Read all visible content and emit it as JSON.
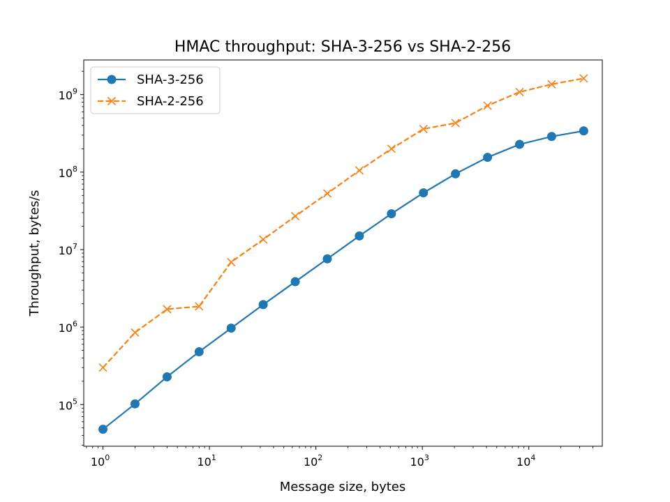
{
  "chart_data": {
    "type": "line",
    "title": "HMAC throughput: SHA-3-256 vs SHA-2-256",
    "xlabel": "Message size, bytes",
    "ylabel": "Throughput, bytes/s",
    "xscale": "log",
    "yscale": "log",
    "xlim": [
      0.66,
      49000
    ],
    "ylim": [
      29000,
      2800000000
    ],
    "grid": false,
    "legend_position": "top-left",
    "x": [
      1,
      2,
      4,
      8,
      16,
      32,
      64,
      128,
      256,
      512,
      1024,
      2048,
      4096,
      8192,
      16384,
      32768
    ],
    "x_ticks": [
      {
        "value": 1,
        "base": "10",
        "exp": "0"
      },
      {
        "value": 10,
        "base": "10",
        "exp": "1"
      },
      {
        "value": 100,
        "base": "10",
        "exp": "2"
      },
      {
        "value": 1000,
        "base": "10",
        "exp": "3"
      },
      {
        "value": 10000,
        "base": "10",
        "exp": "4"
      }
    ],
    "y_ticks": [
      {
        "value": 100000,
        "base": "10",
        "exp": "5"
      },
      {
        "value": 1000000,
        "base": "10",
        "exp": "6"
      },
      {
        "value": 10000000,
        "base": "10",
        "exp": "7"
      },
      {
        "value": 100000000,
        "base": "10",
        "exp": "8"
      },
      {
        "value": 1000000000,
        "base": "10",
        "exp": "9"
      }
    ],
    "series": [
      {
        "name": "SHA-3-256",
        "color": "#1f77b4",
        "marker": "circle",
        "linestyle": "solid",
        "values": [
          48000,
          102000,
          228000,
          480000,
          970000,
          1950000,
          3850000,
          7600000,
          15000000,
          29000000,
          54000000,
          95000000,
          155000000,
          228000000,
          288000000,
          340000000
        ]
      },
      {
        "name": "SHA-2-256",
        "color": "#ff7f0e",
        "marker": "x",
        "linestyle": "dashed",
        "values": [
          300000,
          850000,
          1700000,
          1850000,
          6900000,
          13500000,
          27000000,
          53000000,
          105000000,
          200000000,
          360000000,
          430000000,
          720000000,
          1080000000,
          1360000000,
          1620000000
        ]
      }
    ]
  }
}
